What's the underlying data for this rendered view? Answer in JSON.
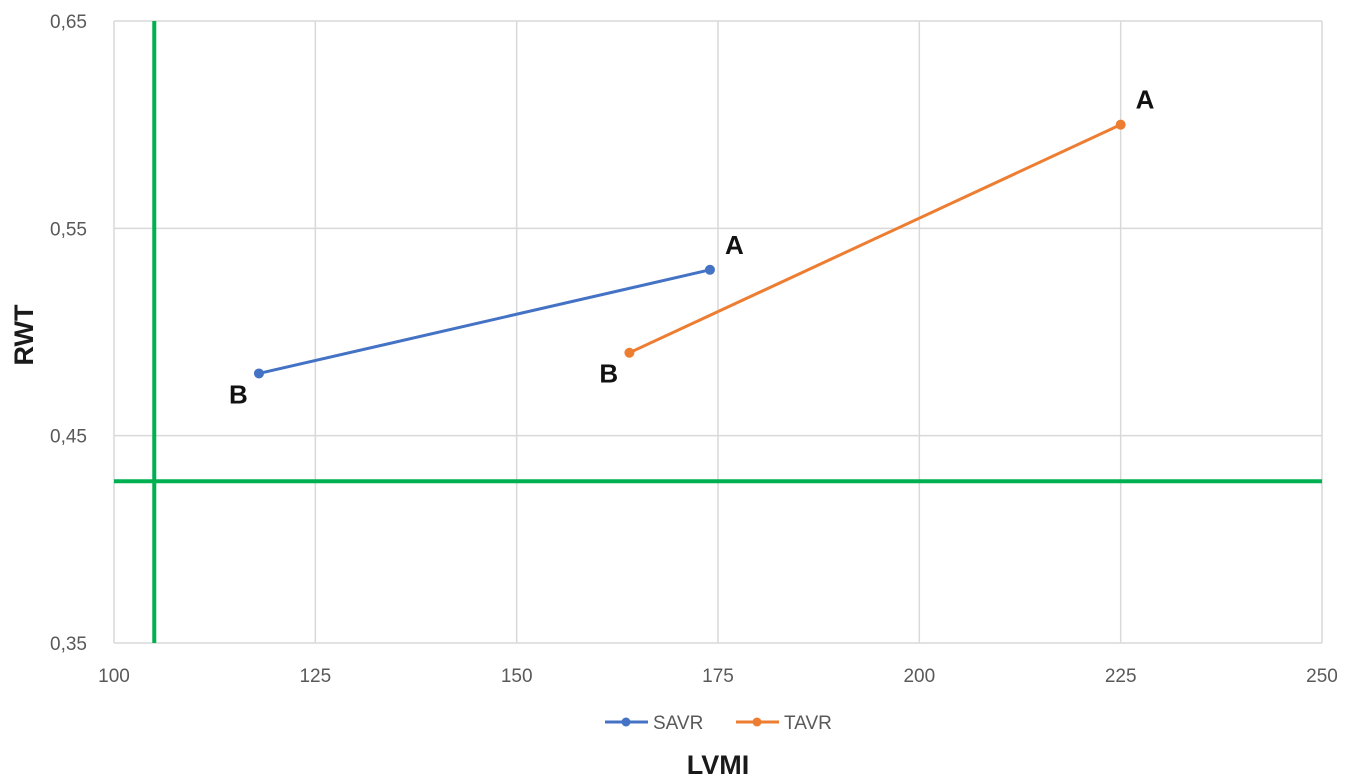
{
  "chart_data": {
    "type": "line",
    "xlabel": "LVMI",
    "ylabel": "RWT",
    "xlim": [
      100,
      250
    ],
    "ylim": [
      0.35,
      0.65
    ],
    "x_ticks": [
      "100",
      "125",
      "150",
      "175",
      "200",
      "225",
      "250"
    ],
    "y_ticks": [
      "0,35",
      "0,45",
      "0,55",
      "0,65"
    ],
    "grid": true,
    "legend_position": "bottom",
    "series": [
      {
        "name": "SAVR",
        "color": "#4472C4",
        "points": [
          {
            "x": 118,
            "y": 0.48,
            "label": "B"
          },
          {
            "x": 174,
            "y": 0.53,
            "label": "A"
          }
        ]
      },
      {
        "name": "TAVR",
        "color": "#ED7D31",
        "points": [
          {
            "x": 164,
            "y": 0.49,
            "label": "B"
          },
          {
            "x": 225,
            "y": 0.6,
            "label": "A"
          }
        ]
      }
    ],
    "reference_lines": [
      {
        "orientation": "vertical",
        "x": 105,
        "color": "#00B050"
      },
      {
        "orientation": "horizontal",
        "y": 0.428,
        "color": "#00B050"
      }
    ]
  }
}
